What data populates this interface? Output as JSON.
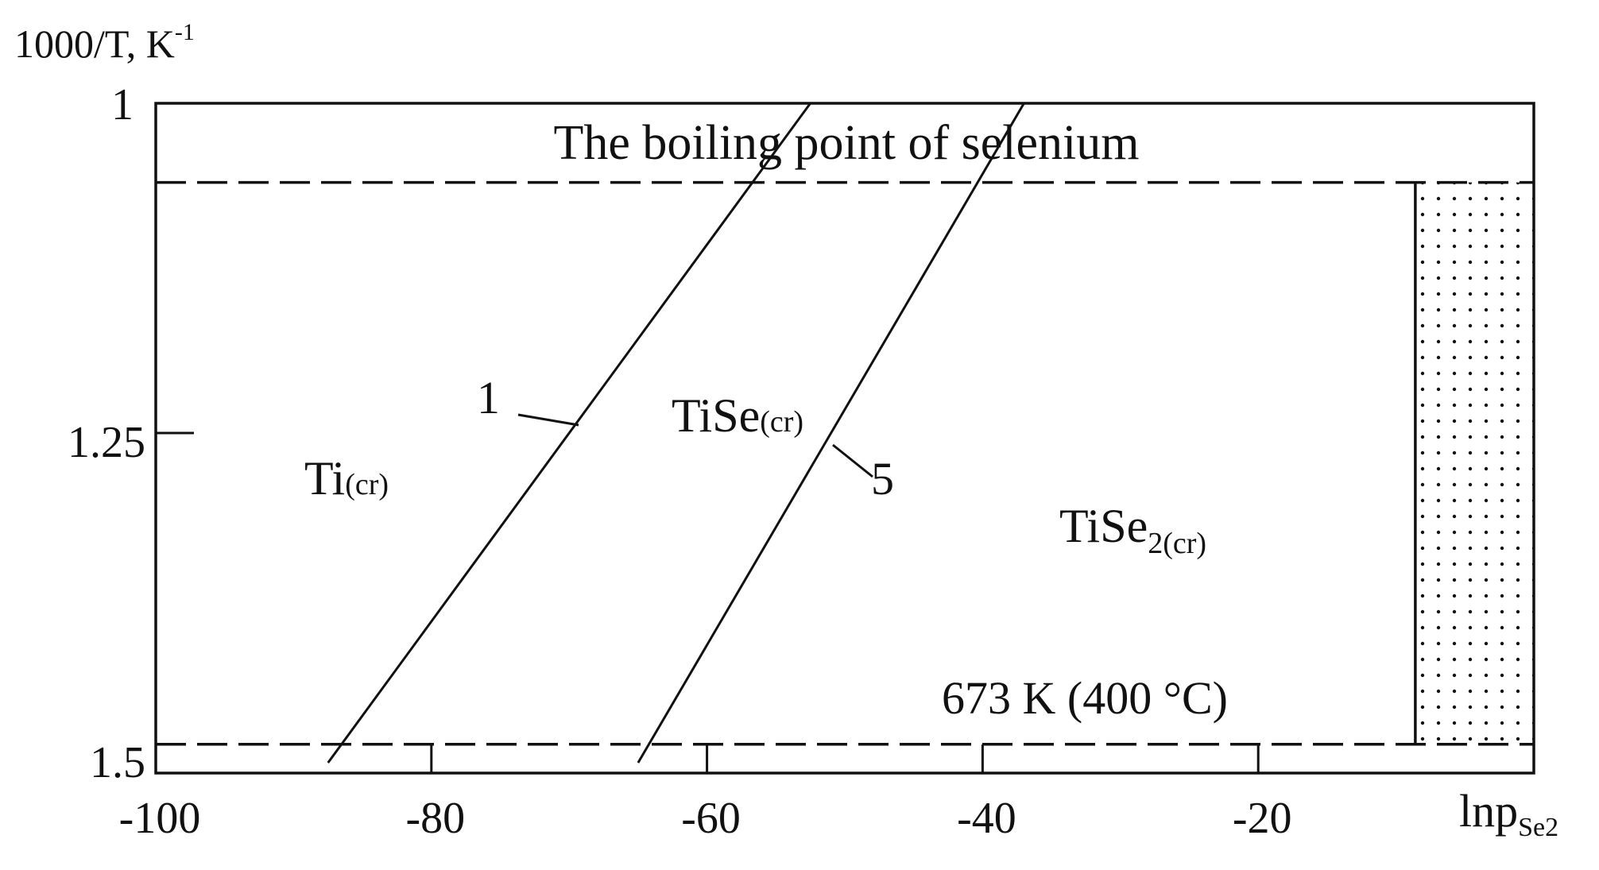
{
  "chart_data": {
    "type": "line",
    "title": "",
    "ylabel_main": "1000/T, K",
    "ylabel_sup": "-1",
    "xlabel_main": "lnp",
    "xlabel_sub": "Se2",
    "xlim": [
      -100,
      0
    ],
    "ylim": [
      1.0,
      1.5
    ],
    "y_inverted": true,
    "x_ticks": [
      -100,
      -80,
      -60,
      -40,
      -20
    ],
    "x_tick_labels": [
      "-100",
      "-80",
      "-60",
      "-40",
      "-20"
    ],
    "y_ticks": [
      1,
      1.25,
      1.5
    ],
    "y_tick_labels": [
      "1",
      "1.25",
      "1.5"
    ],
    "grid": false,
    "series": [
      {
        "name": "1",
        "x": [
          -87.5,
          -52.5
        ],
        "y": [
          1.5,
          1.0
        ]
      },
      {
        "name": "5",
        "x": [
          -65,
          -37
        ],
        "y": [
          1.5,
          1.0
        ]
      }
    ],
    "reference_lines": [
      {
        "label": "The boiling point of selenium",
        "y": 1.06
      },
      {
        "label": "673 K (400 °C)",
        "y": 1.486
      }
    ],
    "regions": [
      {
        "main": "Ti",
        "sub": "(cr)",
        "x": -92,
        "y": 1.28
      },
      {
        "main": "TiSe",
        "sub": "(cr)",
        "x": -61,
        "y": 1.235
      },
      {
        "main": "TiSe",
        "sub": "2(cr)",
        "x": -27,
        "y": 1.32
      }
    ],
    "shaded_region": {
      "x_from": -8.6,
      "x_to": 0,
      "y_from": 1.06,
      "y_to": 1.486,
      "pattern": "dotted"
    }
  }
}
